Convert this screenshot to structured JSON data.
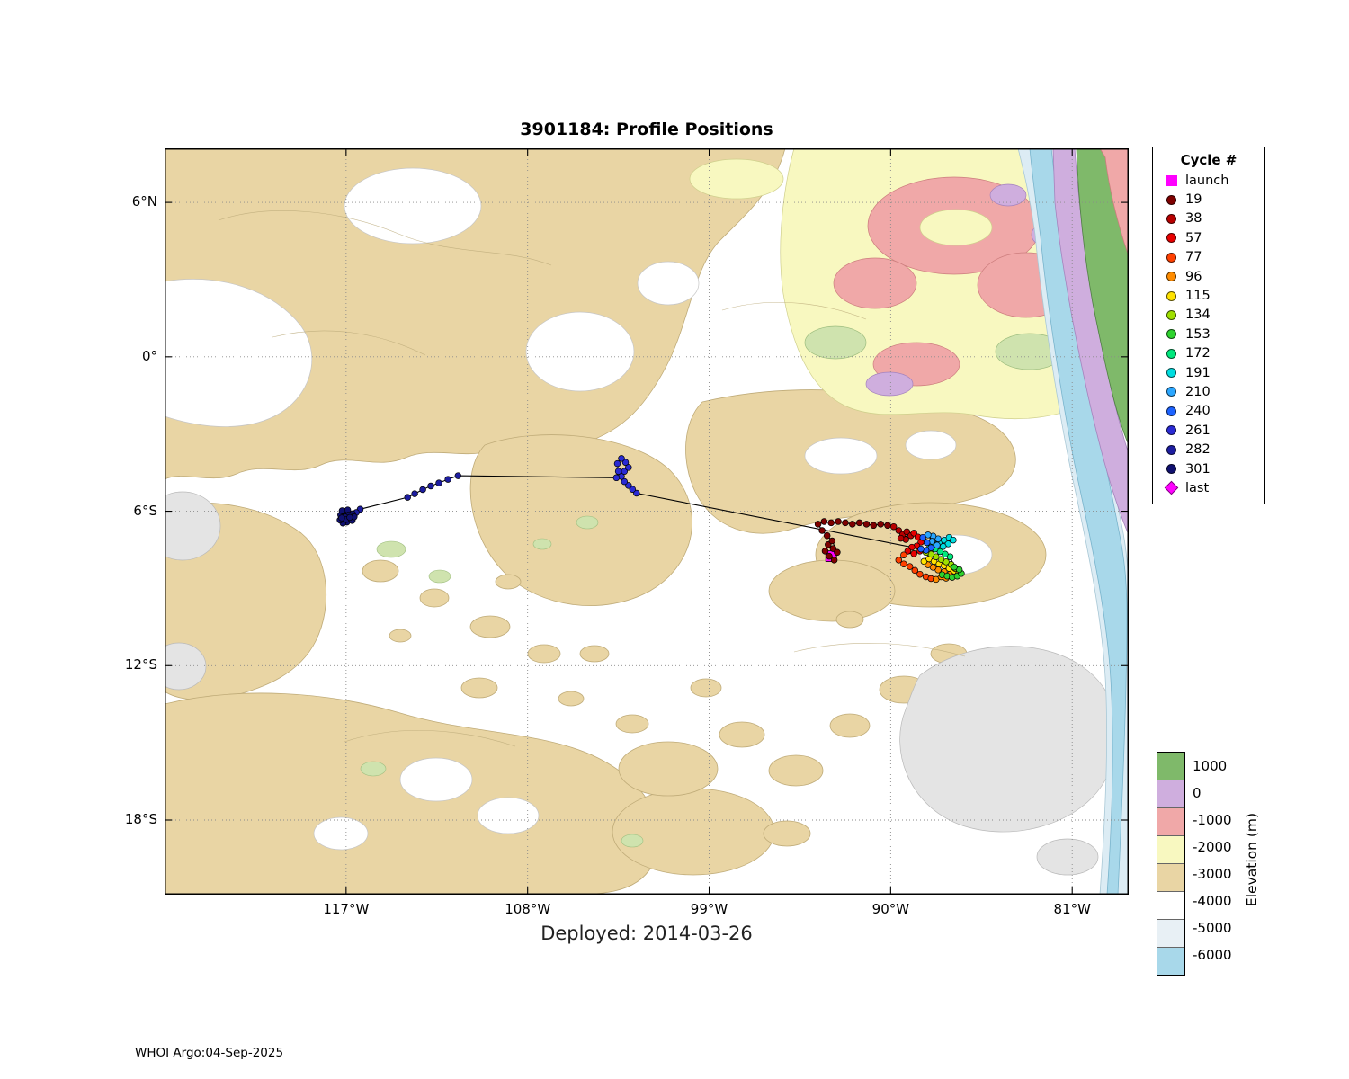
{
  "header": {
    "title": "3901184: Profile Positions"
  },
  "caption": {
    "deployed": "Deployed: 2014-03-26"
  },
  "footer": {
    "credit": "WHOI Argo:04-Sep-2025"
  },
  "legend": {
    "title": "Cycle #",
    "entries": [
      {
        "label": "launch",
        "marker": "square",
        "color": "#ff00ff"
      },
      {
        "label": "19",
        "marker": "circle",
        "color": "#7f0000"
      },
      {
        "label": "38",
        "marker": "circle",
        "color": "#b80000"
      },
      {
        "label": "57",
        "marker": "circle",
        "color": "#e80000"
      },
      {
        "label": "77",
        "marker": "circle",
        "color": "#ff4000"
      },
      {
        "label": "96",
        "marker": "circle",
        "color": "#ff8c00"
      },
      {
        "label": "115",
        "marker": "circle",
        "color": "#ffe200"
      },
      {
        "label": "134",
        "marker": "circle",
        "color": "#9fe000"
      },
      {
        "label": "153",
        "marker": "circle",
        "color": "#2ed32e"
      },
      {
        "label": "172",
        "marker": "circle",
        "color": "#00e87d"
      },
      {
        "label": "191",
        "marker": "circle",
        "color": "#00dde0"
      },
      {
        "label": "210",
        "marker": "circle",
        "color": "#2aa6ff"
      },
      {
        "label": "240",
        "marker": "circle",
        "color": "#1c62ff"
      },
      {
        "label": "261",
        "marker": "circle",
        "color": "#2a2ad4"
      },
      {
        "label": "282",
        "marker": "circle",
        "color": "#1d1da0"
      },
      {
        "label": "301",
        "marker": "circle",
        "color": "#101070"
      },
      {
        "label": "last",
        "marker": "diamond",
        "color": "#ff00ff"
      }
    ]
  },
  "colorbar": {
    "title": "Elevation (m)",
    "entries": [
      {
        "label": "1000",
        "color": "#7fb96a"
      },
      {
        "label": "0",
        "color": "#cfaede"
      },
      {
        "label": "-1000",
        "color": "#f0a8a8"
      },
      {
        "label": "-2000",
        "color": "#f8f8c0"
      },
      {
        "label": "-3000",
        "color": "#e9d5a4"
      },
      {
        "label": "-4000",
        "color": "#ffffff"
      },
      {
        "label": "-5000",
        "color": "#e8f0f5"
      },
      {
        "label": "-6000",
        "color": "#a8d8ea"
      }
    ]
  },
  "chart_data": {
    "type": "scatter",
    "title": "3901184: Profile Positions",
    "subtitle": "Deployed: 2014-03-26",
    "xlabel": "Longitude",
    "ylabel": "Latitude",
    "xlim": [
      -126.0,
      -78.2
    ],
    "ylim": [
      -20.9,
      8.1
    ],
    "grid": true,
    "x_ticks": [
      {
        "label": "117°W",
        "lon": -117
      },
      {
        "label": "108°W",
        "lon": -108
      },
      {
        "label": "99°W",
        "lon": -99
      },
      {
        "label": "90°W",
        "lon": -90
      },
      {
        "label": "81°W",
        "lon": -81
      }
    ],
    "y_ticks": [
      {
        "label": "6°N",
        "lat": 6
      },
      {
        "label": "0°",
        "lat": 0
      },
      {
        "label": "6°S",
        "lat": -6
      },
      {
        "label": "12°S",
        "lat": -12
      },
      {
        "label": "18°S",
        "lat": -18
      }
    ],
    "launch": {
      "lon": -92.95,
      "lat": -7.75,
      "color": "#ff00ff"
    },
    "last": {
      "lon": -116.95,
      "lat": -6.25,
      "color": "#ff00ff"
    },
    "series": [
      {
        "cycle": "19",
        "color": "#7f0000",
        "points": [
          [
            -92.8,
            -7.9
          ],
          [
            -93.05,
            -7.75
          ],
          [
            -93.25,
            -7.55
          ],
          [
            -93.1,
            -7.3
          ],
          [
            -92.85,
            -7.45
          ],
          [
            -92.65,
            -7.6
          ],
          [
            -92.9,
            -7.15
          ],
          [
            -93.15,
            -6.95
          ],
          [
            -93.4,
            -6.75
          ],
          [
            -93.6,
            -6.5
          ],
          [
            -93.3,
            -6.4
          ],
          [
            -92.95,
            -6.45
          ],
          [
            -92.6,
            -6.4
          ],
          [
            -92.25,
            -6.45
          ],
          [
            -91.9,
            -6.5
          ],
          [
            -91.55,
            -6.45
          ],
          [
            -91.2,
            -6.5
          ],
          [
            -90.85,
            -6.55
          ],
          [
            -90.5,
            -6.5
          ],
          [
            -90.15,
            -6.55
          ]
        ]
      },
      {
        "cycle": "38",
        "color": "#b80000",
        "points": [
          [
            -89.85,
            -6.6
          ],
          [
            -89.6,
            -6.75
          ],
          [
            -89.4,
            -6.9
          ],
          [
            -89.2,
            -6.8
          ],
          [
            -89.0,
            -6.95
          ],
          [
            -89.25,
            -7.1
          ],
          [
            -89.5,
            -7.05
          ]
        ]
      },
      {
        "cycle": "57",
        "color": "#e80000",
        "points": [
          [
            -88.85,
            -6.85
          ],
          [
            -88.65,
            -7.0
          ],
          [
            -88.5,
            -7.2
          ],
          [
            -88.7,
            -7.35
          ],
          [
            -88.95,
            -7.4
          ],
          [
            -89.15,
            -7.55
          ],
          [
            -88.85,
            -7.65
          ],
          [
            -88.55,
            -7.55
          ]
        ]
      },
      {
        "cycle": "77",
        "color": "#ff4000",
        "points": [
          [
            -89.35,
            -7.7
          ],
          [
            -89.6,
            -7.9
          ],
          [
            -89.35,
            -8.05
          ],
          [
            -89.05,
            -8.15
          ],
          [
            -88.8,
            -8.3
          ],
          [
            -88.55,
            -8.45
          ],
          [
            -88.25,
            -8.55
          ],
          [
            -88.0,
            -8.62
          ]
        ]
      },
      {
        "cycle": "96",
        "color": "#ff8c00",
        "points": [
          [
            -87.75,
            -8.65
          ],
          [
            -87.5,
            -8.55
          ],
          [
            -87.25,
            -8.6
          ],
          [
            -87.05,
            -8.45
          ],
          [
            -87.35,
            -8.35
          ],
          [
            -87.65,
            -8.28
          ],
          [
            -87.9,
            -8.18
          ],
          [
            -88.15,
            -8.08
          ]
        ]
      },
      {
        "cycle": "115",
        "color": "#ffe200",
        "points": [
          [
            -88.35,
            -7.95
          ],
          [
            -88.1,
            -7.85
          ],
          [
            -87.85,
            -7.95
          ],
          [
            -87.6,
            -8.05
          ],
          [
            -87.35,
            -8.12
          ],
          [
            -87.1,
            -8.22
          ],
          [
            -86.85,
            -8.32
          ],
          [
            -86.65,
            -8.45
          ]
        ]
      },
      {
        "cycle": "134",
        "color": "#9fe000",
        "points": [
          [
            -86.8,
            -8.22
          ],
          [
            -87.0,
            -8.07
          ],
          [
            -87.25,
            -7.97
          ],
          [
            -87.5,
            -7.87
          ],
          [
            -87.75,
            -7.77
          ],
          [
            -88.0,
            -7.67
          ],
          [
            -88.25,
            -7.6
          ]
        ]
      },
      {
        "cycle": "153",
        "color": "#2ed32e",
        "points": [
          [
            -87.45,
            -8.47
          ],
          [
            -87.2,
            -8.52
          ],
          [
            -86.95,
            -8.57
          ],
          [
            -86.7,
            -8.52
          ],
          [
            -86.5,
            -8.42
          ],
          [
            -86.6,
            -8.27
          ],
          [
            -86.85,
            -8.17
          ]
        ]
      },
      {
        "cycle": "172",
        "color": "#00e87d",
        "points": [
          [
            -87.05,
            -7.77
          ],
          [
            -87.3,
            -7.67
          ],
          [
            -87.55,
            -7.57
          ],
          [
            -87.8,
            -7.47
          ],
          [
            -88.05,
            -7.37
          ],
          [
            -87.85,
            -7.27
          ]
        ]
      },
      {
        "cycle": "191",
        "color": "#00dde0",
        "points": [
          [
            -87.6,
            -7.22
          ],
          [
            -87.35,
            -7.12
          ],
          [
            -87.1,
            -7.02
          ],
          [
            -86.9,
            -7.12
          ],
          [
            -87.15,
            -7.27
          ],
          [
            -87.4,
            -7.37
          ]
        ]
      },
      {
        "cycle": "210",
        "color": "#2aa6ff",
        "points": [
          [
            -87.65,
            -7.07
          ],
          [
            -87.9,
            -6.97
          ],
          [
            -88.15,
            -6.92
          ],
          [
            -87.95,
            -7.17
          ],
          [
            -87.7,
            -7.32
          ]
        ]
      },
      {
        "cycle": "240",
        "color": "#1c62ff",
        "points": [
          [
            -88.4,
            -7.02
          ],
          [
            -88.2,
            -7.22
          ],
          [
            -88.0,
            -7.42
          ],
          [
            -88.25,
            -7.52
          ],
          [
            -88.5,
            -7.47
          ]
        ]
      },
      {
        "cycle": "261",
        "color": "#2a2ad4",
        "points": [
          [
            -102.6,
            -5.3
          ],
          [
            -102.8,
            -5.15
          ],
          [
            -103.0,
            -5.0
          ],
          [
            -103.2,
            -4.85
          ],
          [
            -103.35,
            -4.65
          ],
          [
            -103.2,
            -4.45
          ],
          [
            -103.0,
            -4.3
          ],
          [
            -103.15,
            -4.1
          ],
          [
            -103.35,
            -3.95
          ],
          [
            -103.55,
            -4.15
          ],
          [
            -103.5,
            -4.45
          ],
          [
            -103.6,
            -4.7
          ]
        ]
      },
      {
        "cycle": "282",
        "color": "#1d1da0",
        "points": [
          [
            -111.45,
            -4.62
          ],
          [
            -111.95,
            -4.76
          ],
          [
            -112.4,
            -4.9
          ],
          [
            -112.8,
            -5.02
          ],
          [
            -113.2,
            -5.16
          ],
          [
            -113.6,
            -5.32
          ],
          [
            -113.95,
            -5.46
          ],
          [
            -116.3,
            -5.92
          ],
          [
            -116.5,
            -6.05
          ]
        ]
      },
      {
        "cycle": "301",
        "color": "#101070",
        "points": [
          [
            -116.68,
            -6.1
          ],
          [
            -116.9,
            -6.2
          ],
          [
            -117.1,
            -6.3
          ],
          [
            -117.27,
            -6.15
          ],
          [
            -117.12,
            -6.0
          ],
          [
            -116.92,
            -5.95
          ],
          [
            -116.76,
            -6.3
          ],
          [
            -116.96,
            -6.42
          ],
          [
            -117.16,
            -6.46
          ],
          [
            -117.3,
            -6.34
          ],
          [
            -116.86,
            -6.14
          ],
          [
            -117.06,
            -6.22
          ],
          [
            -116.7,
            -6.36
          ],
          [
            -117.2,
            -5.98
          ],
          [
            -116.6,
            -6.22
          ],
          [
            -117.0,
            -6.32
          ],
          [
            -116.82,
            -6.24
          ],
          [
            -117.22,
            -6.26
          ]
        ]
      }
    ]
  }
}
